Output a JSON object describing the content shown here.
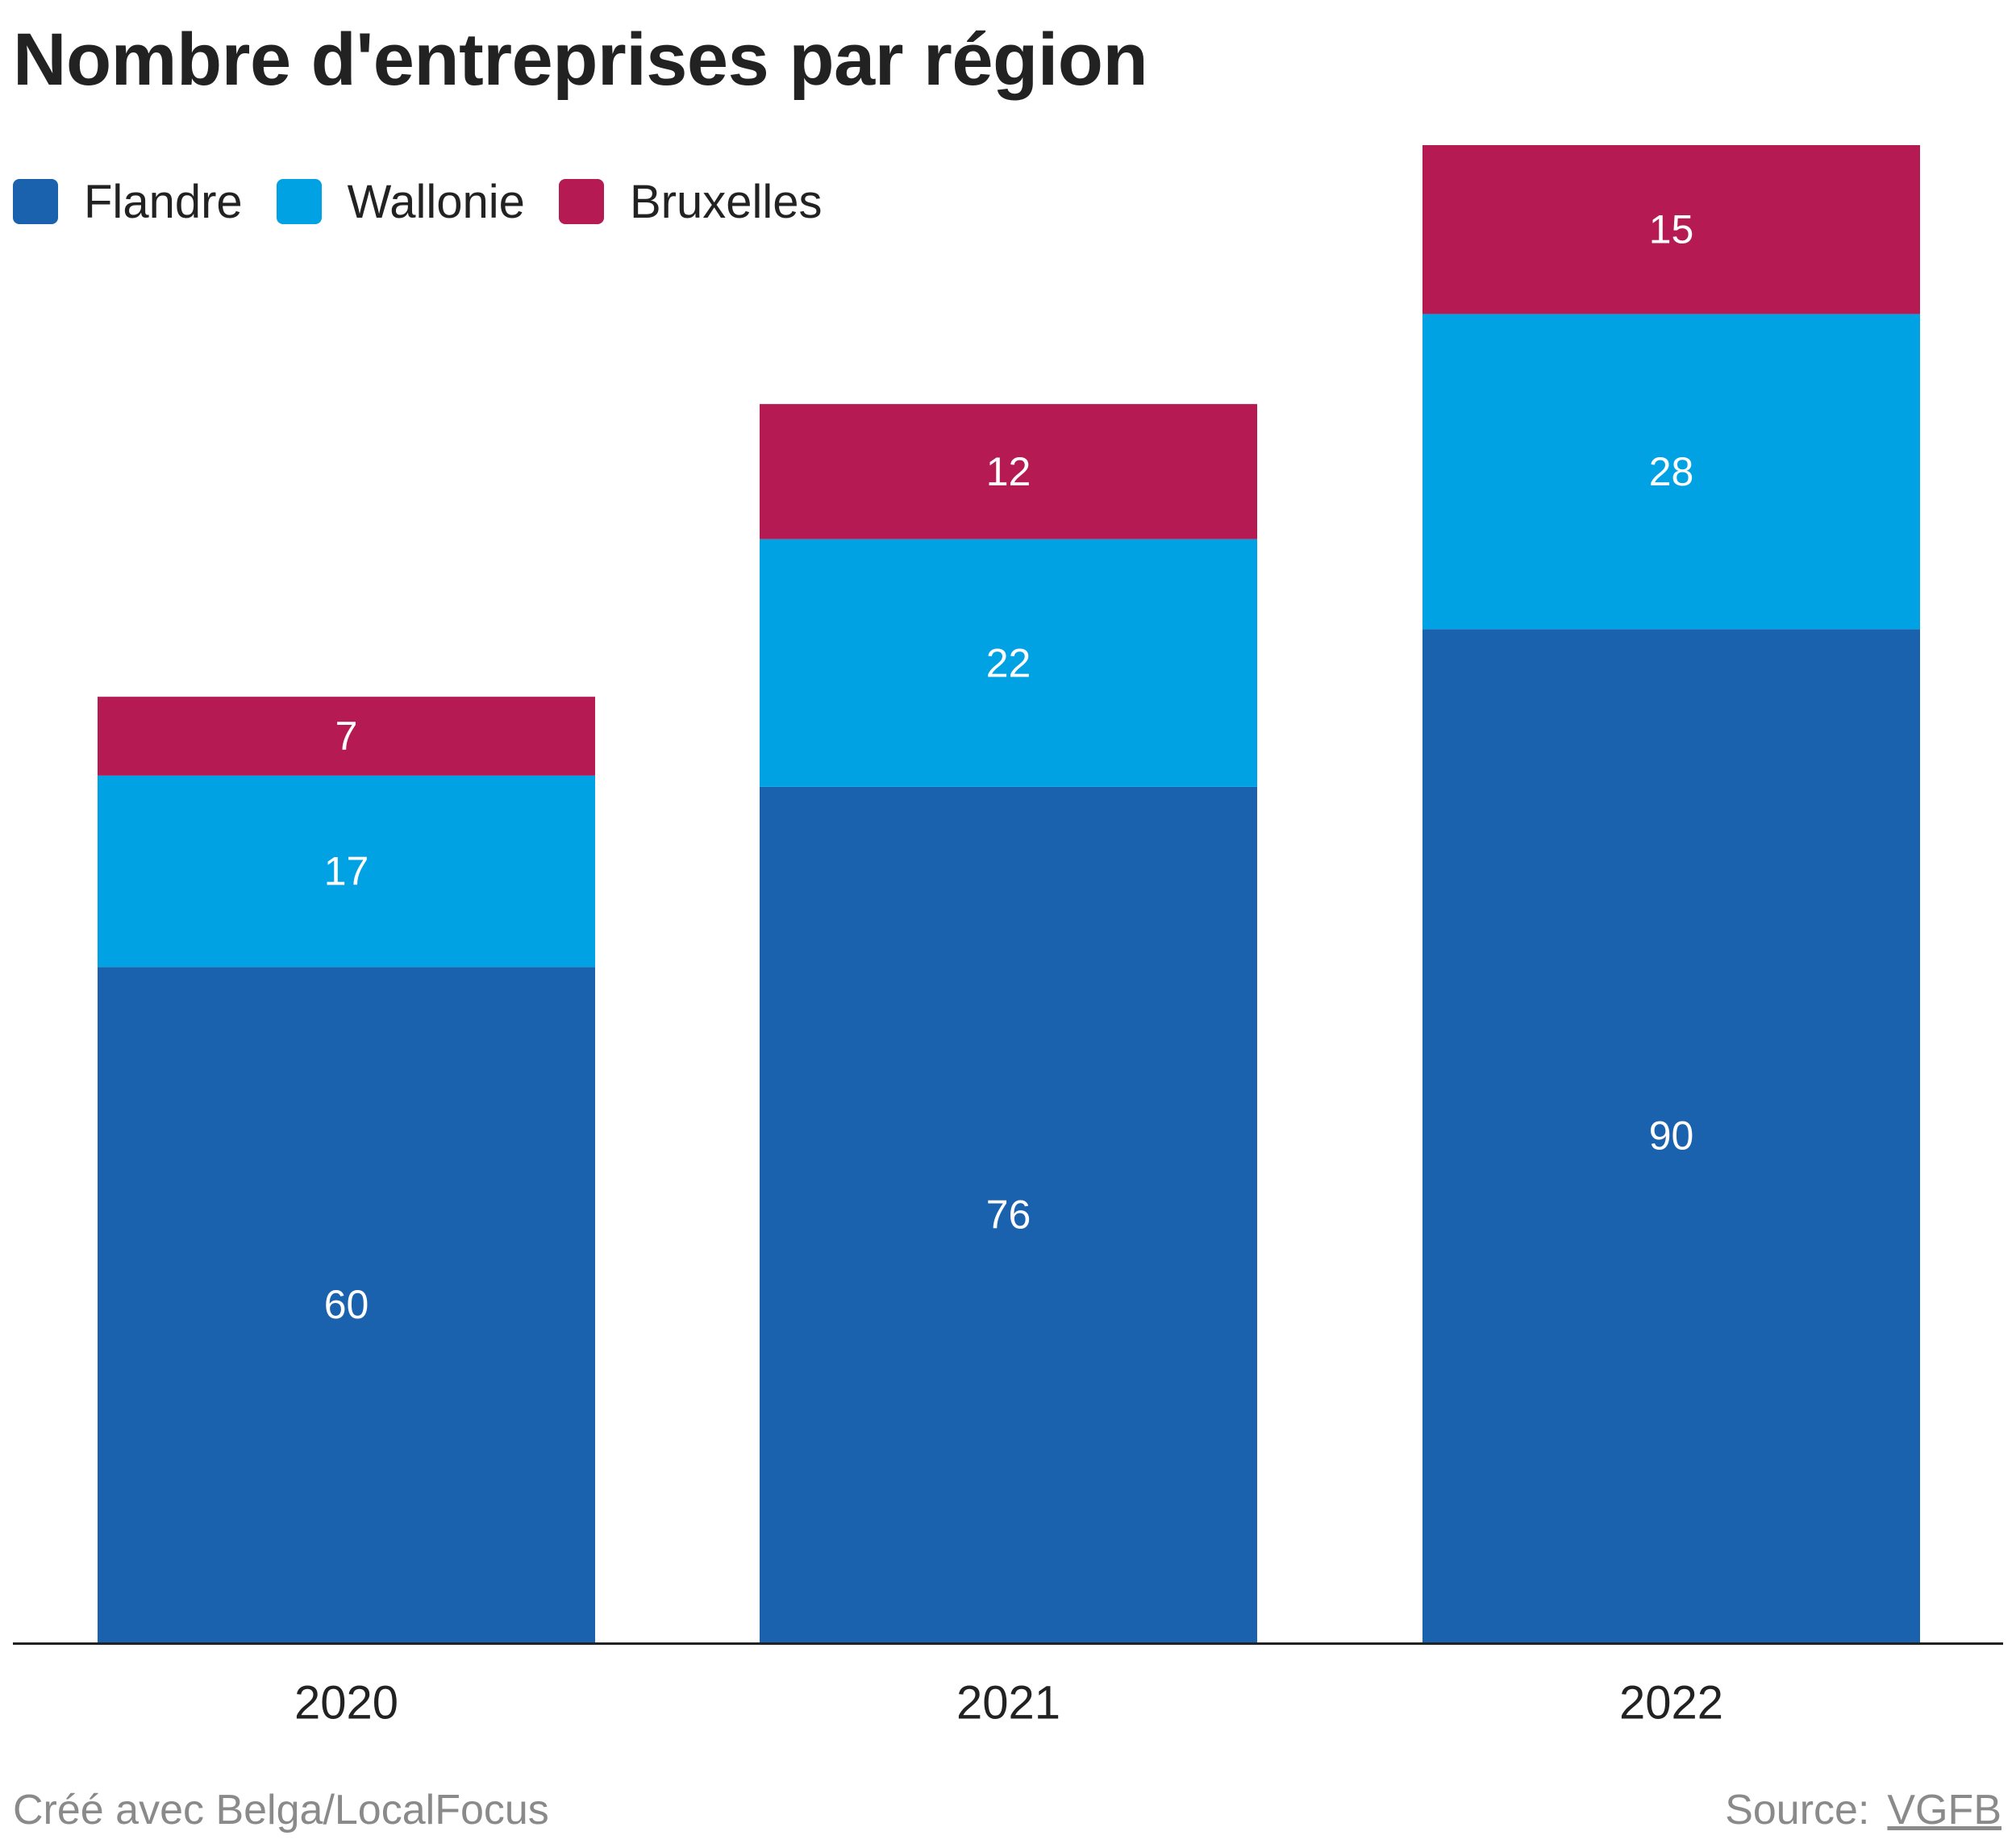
{
  "title": "Nombre d'entreprises par région",
  "legend": [
    {
      "label": "Flandre",
      "color": "#1a62ad"
    },
    {
      "label": "Wallonie",
      "color": "#00a2e3"
    },
    {
      "label": "Bruxelles",
      "color": "#b51b52"
    }
  ],
  "chart_data": {
    "type": "bar",
    "stacked": true,
    "categories": [
      "2020",
      "2021",
      "2022"
    ],
    "series": [
      {
        "name": "Flandre",
        "color": "#1a62ad",
        "values": [
          60,
          76,
          90
        ]
      },
      {
        "name": "Wallonie",
        "color": "#00a2e3",
        "values": [
          17,
          22,
          28
        ]
      },
      {
        "name": "Bruxelles",
        "color": "#b51b52",
        "values": [
          7,
          12,
          15
        ]
      }
    ],
    "ylim": [
      0,
      133
    ],
    "grid": false,
    "legend_position": "top-left",
    "data_labels": true
  },
  "footer": {
    "credit": "Créé avec Belga/LocalFocus",
    "source_label": "Source:",
    "source_link": "VGFB"
  }
}
